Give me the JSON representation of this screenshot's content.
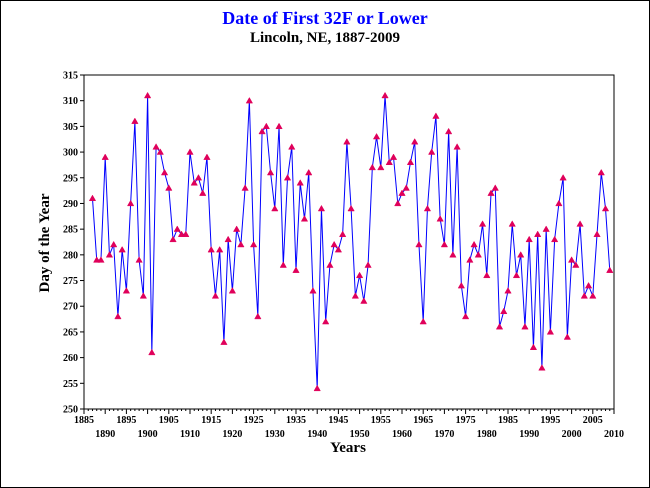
{
  "colors": {
    "title": "#0000ff",
    "line": "#0000ff",
    "marker": "#e0005a",
    "axis": "#000000"
  },
  "chart_data": {
    "type": "line",
    "title": "Date of First 32F or Lower",
    "subtitle": "Lincoln, NE, 1887-2009",
    "xlabel": "Years",
    "ylabel": "Day of the Year",
    "xlim": [
      1885,
      2010
    ],
    "ylim": [
      250,
      315
    ],
    "y_tick_step": 5,
    "x_ticks_upper": [
      1885,
      1895,
      1905,
      1915,
      1925,
      1935,
      1945,
      1955,
      1965,
      1975,
      1985,
      1995,
      2005
    ],
    "x_ticks_lower": [
      1890,
      1900,
      1910,
      1920,
      1930,
      1940,
      1950,
      1960,
      1970,
      1980,
      1990,
      2000,
      2010
    ],
    "grid": false,
    "marker": "triangle",
    "series": [
      {
        "x": [
          1887,
          1888,
          1889,
          1890,
          1891,
          1892,
          1893,
          1894,
          1895,
          1896,
          1897,
          1898,
          1899,
          1900,
          1901,
          1902,
          1903,
          1904,
          1905,
          1906,
          1907,
          1908,
          1909,
          1910,
          1911,
          1912,
          1913,
          1914,
          1915,
          1916,
          1917,
          1918,
          1919,
          1920,
          1921,
          1922,
          1923,
          1924,
          1925,
          1926,
          1927,
          1928,
          1929,
          1930,
          1931,
          1932,
          1933,
          1934,
          1935,
          1936,
          1937,
          1938,
          1939,
          1940,
          1941,
          1942,
          1943,
          1944,
          1945,
          1946,
          1947,
          1948,
          1949,
          1950,
          1951,
          1952,
          1953,
          1954,
          1955,
          1956,
          1957,
          1958,
          1959,
          1960,
          1961,
          1962,
          1963,
          1964,
          1965,
          1966,
          1967,
          1968,
          1969,
          1970,
          1971,
          1972,
          1973,
          1974,
          1975,
          1976,
          1977,
          1978,
          1979,
          1980,
          1981,
          1982,
          1983,
          1984,
          1985,
          1986,
          1987,
          1988,
          1989,
          1990,
          1991,
          1992,
          1993,
          1994,
          1995,
          1996,
          1997,
          1998,
          1999,
          2000,
          2001,
          2002,
          2003,
          2004,
          2005,
          2006,
          2007,
          2008,
          2009
        ],
        "values": [
          291,
          279,
          279,
          299,
          280,
          282,
          268,
          281,
          273,
          290,
          306,
          279,
          272,
          311,
          261,
          301,
          300,
          296,
          293,
          283,
          285,
          284,
          284,
          300,
          294,
          295,
          292,
          299,
          281,
          272,
          281,
          263,
          283,
          273,
          285,
          282,
          293,
          310,
          282,
          268,
          304,
          305,
          296,
          289,
          305,
          278,
          295,
          301,
          277,
          294,
          287,
          296,
          273,
          254,
          289,
          267,
          278,
          282,
          281,
          284,
          302,
          289,
          272,
          276,
          271,
          278,
          297,
          303,
          297,
          311,
          298,
          299,
          290,
          292,
          293,
          298,
          302,
          282,
          267,
          289,
          300,
          307,
          287,
          282,
          304,
          280,
          301,
          274,
          268,
          279,
          282,
          280,
          286,
          276,
          292,
          293,
          266,
          269,
          273,
          286,
          276,
          280,
          266,
          283,
          262,
          284,
          258,
          285,
          265,
          283,
          290,
          295,
          264,
          279,
          278,
          286,
          272,
          274,
          272,
          284,
          296,
          289,
          277
        ]
      }
    ]
  }
}
